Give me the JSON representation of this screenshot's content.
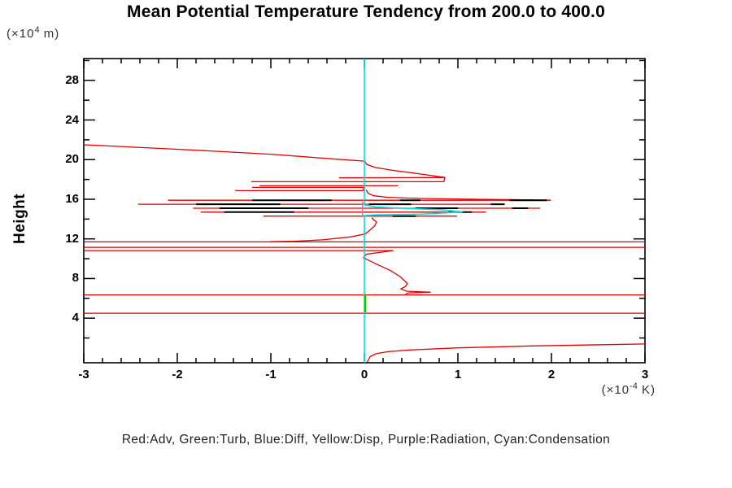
{
  "title": "Mean Potential Temperature Tendency from 200.0 to 400.0",
  "legend_caption": "Red:Adv, Green:Turb, Blue:Diff, Yellow:Disp, Purple:Radiation, Cyan:Condensation",
  "chart_data": {
    "type": "line",
    "title": "Mean Potential Temperature Tendency from 200.0 to 400.0",
    "ylabel": "Height",
    "y_unit": {
      "prefix": "(×10",
      "exp": "4",
      "suffix": " m)"
    },
    "x_unit": {
      "prefix": "(×10",
      "exp": "-4",
      "suffix": " K)"
    },
    "x_range": [
      -3,
      3
    ],
    "y_range": [
      -0.5,
      30.2
    ],
    "x_major_ticks": [
      -3,
      -2,
      -1,
      0,
      1,
      2,
      3
    ],
    "x_minor_step": 0.2,
    "y_major_ticks": [
      4,
      8,
      12,
      16,
      20,
      24,
      28
    ],
    "y_minor_step": 2,
    "grid": false,
    "legend_position": "bottom-caption",
    "legend_entries": [
      {
        "color_name": "Red",
        "label": "Adv"
      },
      {
        "color_name": "Green",
        "label": "Turb"
      },
      {
        "color_name": "Blue",
        "label": "Diff"
      },
      {
        "color_name": "Yellow",
        "label": "Disp"
      },
      {
        "color_name": "Purple",
        "label": "Radiation"
      },
      {
        "color_name": "Cyan",
        "label": "Condensation"
      }
    ],
    "series": [
      {
        "name": "Adv",
        "color": "#e10000",
        "width": 1.3,
        "segments": [
          [
            [
              0.03,
              -0.45
            ],
            [
              0.06,
              0.1
            ],
            [
              0.12,
              0.4
            ],
            [
              0.25,
              0.62
            ],
            [
              0.5,
              0.8
            ],
            [
              1.0,
              1.0
            ],
            [
              1.8,
              1.2
            ],
            [
              3,
              1.4
            ]
          ],
          [
            [
              -3,
              4.5
            ],
            [
              3,
              4.5
            ]
          ],
          [
            [
              -3,
              6.35
            ],
            [
              3,
              6.35
            ]
          ],
          [
            [
              0.44,
              6.42
            ],
            [
              0.47,
              6.55
            ],
            [
              0.71,
              6.62
            ],
            [
              0.45,
              6.72
            ],
            [
              0.39,
              6.95
            ],
            [
              0.44,
              7.2
            ],
            [
              0.46,
              7.5
            ],
            [
              0.38,
              8.2
            ],
            [
              0.28,
              8.8
            ],
            [
              0.12,
              9.5
            ],
            [
              -0.01,
              10.1
            ],
            [
              0.02,
              10.45
            ],
            [
              0.31,
              10.82
            ],
            [
              -3,
              10.82
            ]
          ],
          [
            [
              -3,
              11.15
            ],
            [
              3,
              11.15
            ]
          ],
          [
            [
              -3,
              11.7
            ],
            [
              3,
              11.7
            ]
          ],
          [
            [
              -1.01,
              11.72
            ],
            [
              -0.75,
              11.76
            ],
            [
              -0.45,
              11.9
            ],
            [
              -0.15,
              12.2
            ],
            [
              0.01,
              12.5
            ],
            [
              0.06,
              12.9
            ],
            [
              0.11,
              13.3
            ],
            [
              0.13,
              13.7
            ],
            [
              0.09,
              14.0
            ],
            [
              0.08,
              14.15
            ]
          ],
          [
            [
              -1.08,
              14.3
            ],
            [
              0.99,
              14.3
            ]
          ],
          [
            [
              -1.75,
              14.7
            ],
            [
              1.3,
              14.7
            ]
          ],
          [
            [
              -1.83,
              15.1
            ],
            [
              1.88,
              15.1
            ]
          ],
          [
            [
              -2.42,
              15.5
            ],
            [
              1.5,
              15.5
            ]
          ],
          [
            [
              -2.1,
              15.9
            ],
            [
              1.99,
              15.9
            ]
          ],
          [
            [
              0.02,
              16.95
            ],
            [
              0.04,
              16.6
            ],
            [
              0.1,
              16.35
            ],
            [
              0.25,
              16.2
            ],
            [
              0.6,
              16.08
            ],
            [
              1.2,
              16.0
            ],
            [
              1.99,
              15.92
            ]
          ],
          [
            [
              -1.38,
              16.87
            ],
            [
              -0.01,
              16.87
            ],
            [
              -0.01,
              17.2
            ],
            [
              -1.2,
              17.2
            ]
          ],
          [
            [
              -1.12,
              17.36
            ],
            [
              0.36,
              17.36
            ]
          ],
          [
            [
              -1.21,
              17.77
            ],
            [
              0.85,
              17.77
            ],
            [
              0.86,
              18.2
            ],
            [
              -0.27,
              18.16
            ]
          ],
          [
            [
              -3,
              21.5
            ],
            [
              -2.0,
              21.05
            ],
            [
              -1.0,
              20.55
            ],
            [
              -0.3,
              20.05
            ],
            [
              0.0,
              19.85
            ],
            [
              0.03,
              19.5
            ],
            [
              0.12,
              19.2
            ],
            [
              0.3,
              18.92
            ],
            [
              0.55,
              18.62
            ],
            [
              0.86,
              18.2
            ]
          ]
        ]
      },
      {
        "name": "BlackOverlay",
        "color": "#000000",
        "width": 2,
        "segments": [
          [
            [
              -1.2,
              15.9
            ],
            [
              -0.35,
              15.9
            ]
          ],
          [
            [
              0.38,
              15.9
            ],
            [
              0.6,
              15.9
            ]
          ],
          [
            [
              1.55,
              15.9
            ],
            [
              1.95,
              15.9
            ]
          ],
          [
            [
              -1.8,
              15.5
            ],
            [
              -0.9,
              15.5
            ]
          ],
          [
            [
              0.05,
              15.5
            ],
            [
              0.5,
              15.5
            ]
          ],
          [
            [
              1.35,
              15.5
            ],
            [
              1.5,
              15.5
            ]
          ],
          [
            [
              -1.55,
              15.1
            ],
            [
              -0.6,
              15.1
            ]
          ],
          [
            [
              0.55,
              15.1
            ],
            [
              1.0,
              15.1
            ]
          ],
          [
            [
              1.58,
              15.1
            ],
            [
              1.75,
              15.1
            ]
          ],
          [
            [
              -1.5,
              14.7
            ],
            [
              -0.75,
              14.7
            ]
          ],
          [
            [
              0.9,
              14.7
            ],
            [
              1.15,
              14.7
            ]
          ],
          [
            [
              0.3,
              14.3
            ],
            [
              0.55,
              14.3
            ]
          ]
        ]
      },
      {
        "name": "Condensation",
        "color": "#00e0e0",
        "width": 1.6,
        "segments": [
          [
            [
              0,
              30.2
            ],
            [
              0,
              15.45
            ],
            [
              0.12,
              15.22
            ],
            [
              0.45,
              15.08
            ],
            [
              0.85,
              14.92
            ],
            [
              1.05,
              14.72
            ],
            [
              0.6,
              14.5
            ],
            [
              0.12,
              14.42
            ],
            [
              0,
              14.35
            ],
            [
              0,
              -0.5
            ]
          ]
        ]
      },
      {
        "name": "Radiation",
        "color": "#c678cc",
        "width": 1.6,
        "segments": [
          [
            [
              -0.02,
              15.75
            ],
            [
              -0.02,
              14.4
            ]
          ]
        ]
      },
      {
        "name": "Turb",
        "color": "#00d400",
        "width": 2.5,
        "segments": [
          [
            [
              0.01,
              6.35
            ],
            [
              0.01,
              4.6
            ]
          ]
        ]
      }
    ]
  }
}
